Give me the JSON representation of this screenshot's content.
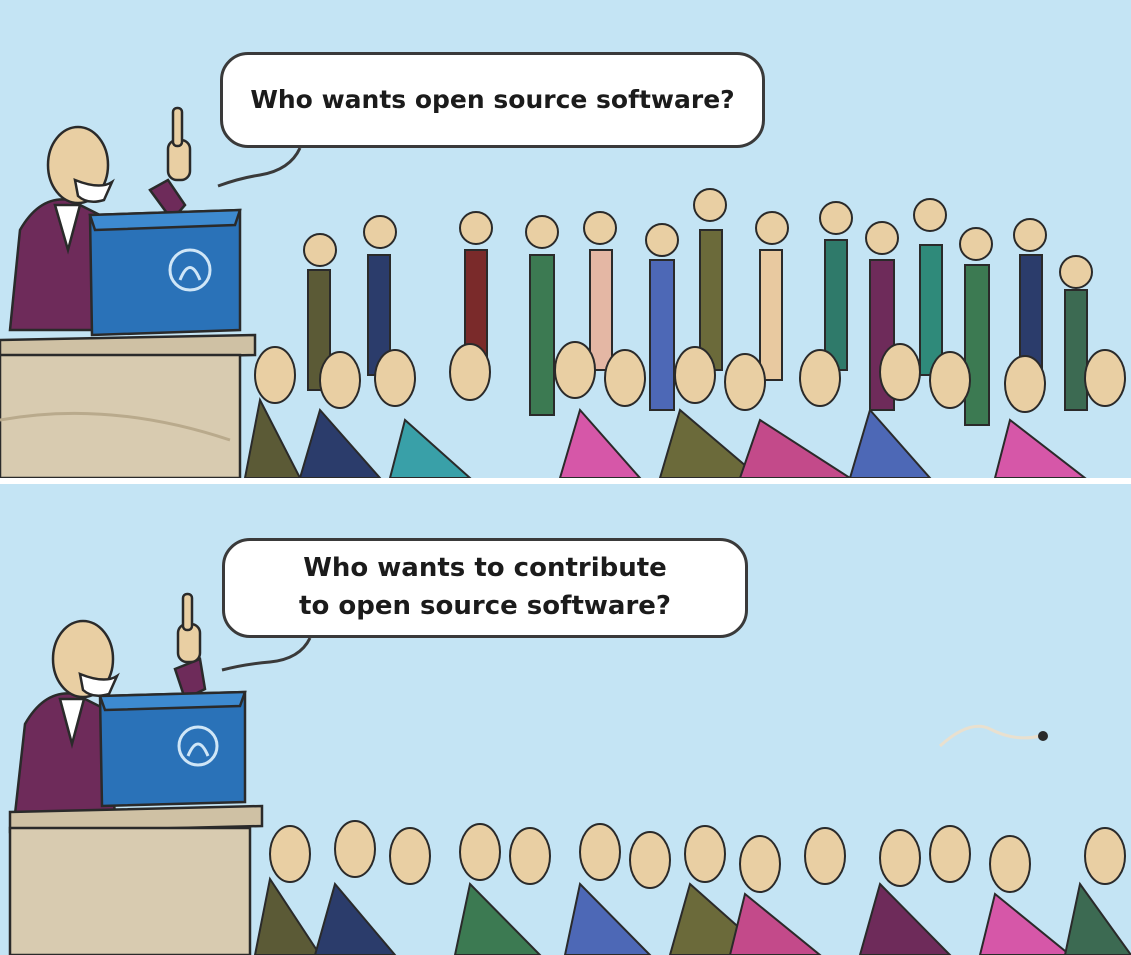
{
  "panels": {
    "top": {
      "speech": "Who wants open source software?"
    },
    "bottom": {
      "speech": "Who wants to contribute\nto open source software?"
    }
  },
  "colors": {
    "sky": "#c4e4f4",
    "podium_front": "#2a72b8",
    "podium_top": "#3d8ad0",
    "lectern": "#d8cbb0",
    "speaker_suit": "#6e2b5a",
    "skin": "#e9cfa3",
    "outline": "#2a2a2a"
  },
  "icons": [
    "un-emblem-icon"
  ]
}
